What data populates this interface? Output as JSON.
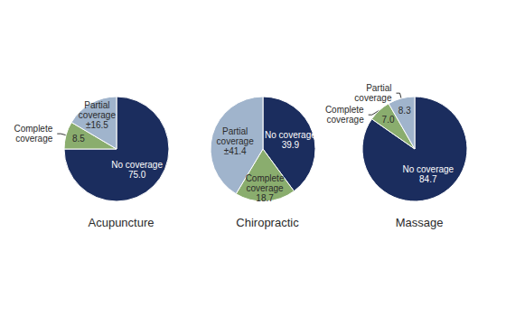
{
  "chart_data": [
    {
      "type": "pie",
      "title": "Acupuncture",
      "values": [
        75.0,
        8.5,
        16.5
      ],
      "value_labels": [
        "No coverage\n75.0",
        "8.5",
        "Partial\ncoverage\n±16.5"
      ],
      "annotations": [
        null,
        "Complete\ncoverage",
        null
      ],
      "colors": [
        "#1b2d5e",
        "#8aad6e",
        "#a0b4cc"
      ],
      "data_labels": true
    },
    {
      "type": "pie",
      "title": "Chiropractic",
      "values": [
        39.9,
        18.7,
        41.4
      ],
      "value_labels": [
        "No coverage\n39.9",
        "Complete\ncoverage\n18.7",
        "Partial\ncoverage\n±41.4"
      ],
      "colors": [
        "#1b2d5e",
        "#8aad6e",
        "#a0b4cc"
      ],
      "data_labels": true
    },
    {
      "type": "pie",
      "title": "Massage",
      "values": [
        84.7,
        7.0,
        8.3
      ],
      "value_labels": [
        "No coverage\n84.7",
        "7.0",
        "8.3"
      ],
      "annotations": [
        null,
        "Complete\ncoverage",
        "Partial\ncoverage"
      ],
      "colors": [
        "#1b2d5e",
        "#8aad6e",
        "#a0b4cc"
      ],
      "data_labels": true
    }
  ]
}
